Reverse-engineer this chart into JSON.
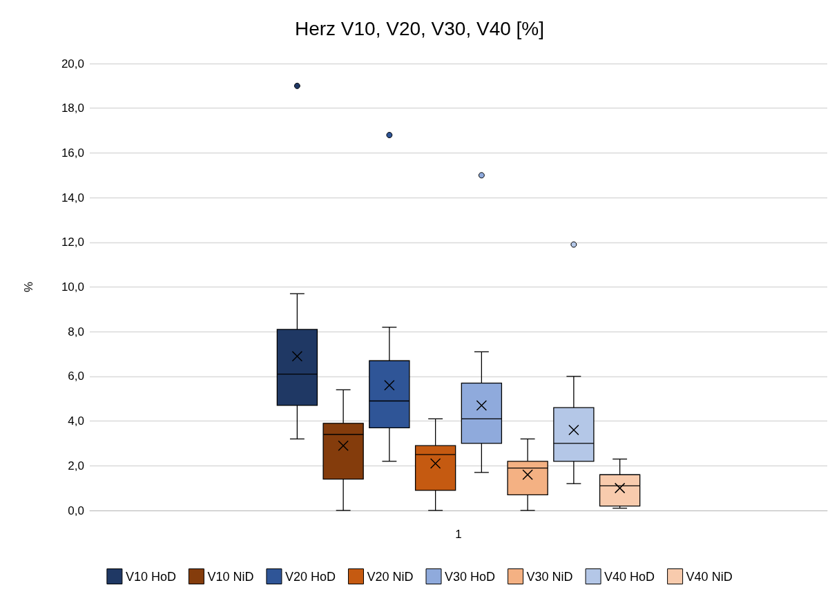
{
  "chart_data": {
    "type": "box",
    "title": "Herz V10, V20, V30, V40 [%]",
    "ylabel": "%",
    "categories": [
      "1"
    ],
    "ylim": [
      0,
      20
    ],
    "yticks": [
      {
        "value": 0,
        "label": "0,0"
      },
      {
        "value": 2,
        "label": "2,0"
      },
      {
        "value": 4,
        "label": "4,0"
      },
      {
        "value": 6,
        "label": "6,0"
      },
      {
        "value": 8,
        "label": "8,0"
      },
      {
        "value": 10,
        "label": "10,0"
      },
      {
        "value": 12,
        "label": "12,0"
      },
      {
        "value": 14,
        "label": "14,0"
      },
      {
        "value": 16,
        "label": "16,0"
      },
      {
        "value": 18,
        "label": "18,0"
      },
      {
        "value": 20,
        "label": "20,0"
      }
    ],
    "grid": "y",
    "legend": "bottom",
    "series": [
      {
        "name": "V10 HoD",
        "color": "#1f3864",
        "boxes": [
          {
            "low": 3.2,
            "q1": 4.7,
            "median": 6.1,
            "q3": 8.1,
            "high": 9.7,
            "mean": 6.9,
            "outliers": [
              19.0
            ]
          }
        ]
      },
      {
        "name": "V10 NiD",
        "color": "#843c0c",
        "boxes": [
          {
            "low": 0,
            "q1": 1.4,
            "median": 3.4,
            "q3": 3.9,
            "high": 5.4,
            "mean": 2.9
          }
        ]
      },
      {
        "name": "V20 HoD",
        "color": "#2f5597",
        "boxes": [
          {
            "low": 2.2,
            "q1": 3.7,
            "median": 4.9,
            "q3": 6.7,
            "high": 8.2,
            "mean": 5.6,
            "outliers": [
              16.8
            ]
          }
        ]
      },
      {
        "name": "V20 NiD",
        "color": "#c55a11",
        "boxes": [
          {
            "low": 0,
            "q1": 0.9,
            "median": 2.5,
            "q3": 2.9,
            "high": 4.1,
            "mean": 2.1
          }
        ]
      },
      {
        "name": "V30 HoD",
        "color": "#8faadc",
        "boxes": [
          {
            "low": 1.7,
            "q1": 3.0,
            "median": 4.1,
            "q3": 5.7,
            "high": 7.1,
            "mean": 4.7,
            "outliers": [
              15.0
            ]
          }
        ]
      },
      {
        "name": "V30 NiD",
        "color": "#f4b183",
        "boxes": [
          {
            "low": 0,
            "q1": 0.7,
            "median": 1.9,
            "q3": 2.2,
            "high": 3.2,
            "mean": 1.6
          }
        ]
      },
      {
        "name": "V40 HoD",
        "color": "#b4c7e7",
        "boxes": [
          {
            "low": 1.2,
            "q1": 2.2,
            "median": 3.0,
            "q3": 4.6,
            "high": 6.0,
            "mean": 3.6,
            "outliers": [
              11.9
            ]
          }
        ]
      },
      {
        "name": "V40 NiD",
        "color": "#f8cbad",
        "boxes": [
          {
            "low": 0.1,
            "q1": 0.2,
            "median": 1.1,
            "q3": 1.6,
            "high": 2.3,
            "mean": 1.0
          }
        ]
      }
    ]
  }
}
